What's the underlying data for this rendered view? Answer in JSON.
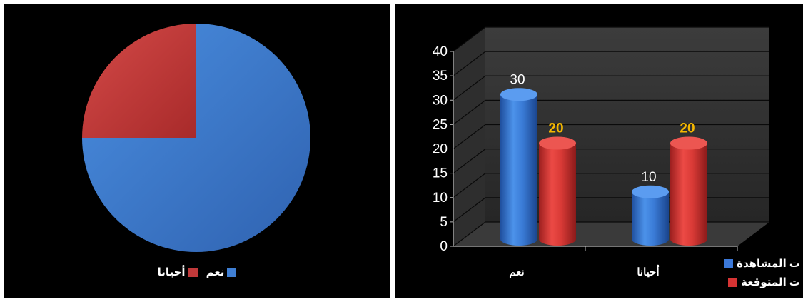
{
  "chart_data": [
    {
      "type": "pie",
      "categories": [
        "نعم",
        "أحيانا"
      ],
      "values": [
        75,
        25
      ],
      "colors": [
        "#3f7fd4",
        "#c0393a"
      ],
      "legend_position": "bottom"
    },
    {
      "type": "bar",
      "style": "3d-cylinder",
      "categories": [
        "نعم",
        "أحيانا"
      ],
      "series": [
        {
          "name": "ت المشاهدة",
          "values": [
            30,
            10
          ],
          "color": "#3b78d8",
          "label_color": "#ffffff"
        },
        {
          "name": "ت المتوقعة",
          "values": [
            20,
            20
          ],
          "color": "#d63434",
          "label_color": "#f5b800"
        }
      ],
      "ylim": [
        0,
        40
      ],
      "yticks": [
        "0",
        "5",
        "10",
        "15",
        "20",
        "25",
        "30",
        "35",
        "40"
      ],
      "grid": true,
      "legend_position": "bottom-right"
    }
  ]
}
